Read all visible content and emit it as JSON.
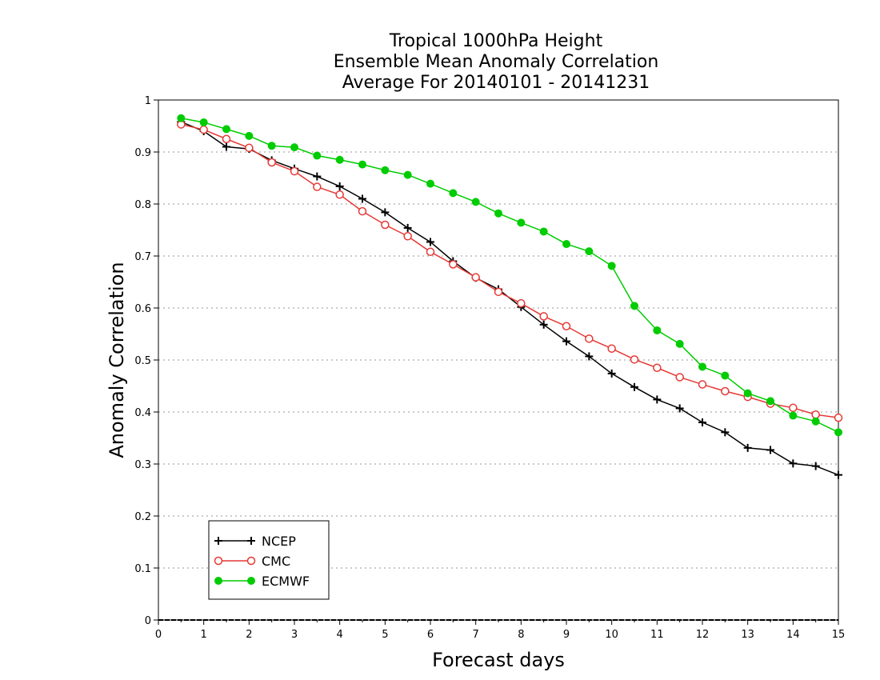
{
  "chart_data": {
    "type": "line",
    "title_lines": [
      "Tropical 1000hPa Height",
      "Ensemble Mean Anomaly Correlation",
      "Average For 20140101 - 20141231"
    ],
    "xlabel": "Forecast days",
    "ylabel": "Anomaly Correlation",
    "xlim": [
      0,
      15
    ],
    "ylim": [
      0,
      1
    ],
    "x_ticks": [
      "0",
      "1",
      "2",
      "3",
      "4",
      "5",
      "6",
      "7",
      "8",
      "9",
      "10",
      "11",
      "12",
      "13",
      "14",
      "15"
    ],
    "y_ticks": [
      "0",
      "0.1",
      "0.2",
      "0.3",
      "0.4",
      "0.5",
      "0.6",
      "0.7",
      "0.8",
      "0.9",
      "1"
    ],
    "grid": "horizontal dotted",
    "legend_position": "bottom-left",
    "x": [
      0.5,
      1,
      1.5,
      2,
      2.5,
      3,
      3.5,
      4,
      4.5,
      5,
      5.5,
      6,
      6.5,
      7,
      7.5,
      8,
      8.5,
      9,
      9.5,
      10,
      10.5,
      11,
      11.5,
      12,
      12.5,
      13,
      13.5,
      14,
      14.5,
      15
    ],
    "series": [
      {
        "name": "NCEP",
        "color": "#000000",
        "marker": "plus",
        "values": [
          0.958,
          0.94,
          0.91,
          0.906,
          0.884,
          0.868,
          0.853,
          0.834,
          0.81,
          0.784,
          0.754,
          0.727,
          0.69,
          0.658,
          0.636,
          0.602,
          0.568,
          0.536,
          0.507,
          0.474,
          0.448,
          0.424,
          0.407,
          0.38,
          0.361,
          0.331,
          0.327,
          0.301,
          0.296,
          0.279
        ]
      },
      {
        "name": "CMC",
        "color": "#e53935",
        "marker": "open-circle",
        "values": [
          0.953,
          0.943,
          0.925,
          0.908,
          0.88,
          0.863,
          0.833,
          0.818,
          0.786,
          0.76,
          0.738,
          0.708,
          0.684,
          0.659,
          0.631,
          0.609,
          0.584,
          0.565,
          0.541,
          0.522,
          0.501,
          0.485,
          0.467,
          0.453,
          0.44,
          0.429,
          0.416,
          0.408,
          0.395,
          0.389
        ]
      },
      {
        "name": "ECMWF",
        "color": "#00cc00",
        "marker": "filled-circle",
        "values": [
          0.965,
          0.957,
          0.944,
          0.931,
          0.912,
          0.909,
          0.893,
          0.885,
          0.876,
          0.865,
          0.856,
          0.839,
          0.821,
          0.804,
          0.782,
          0.764,
          0.747,
          0.723,
          0.709,
          0.681,
          0.604,
          0.557,
          0.531,
          0.487,
          0.47,
          0.436,
          0.421,
          0.393,
          0.382,
          0.361
        ]
      }
    ]
  }
}
